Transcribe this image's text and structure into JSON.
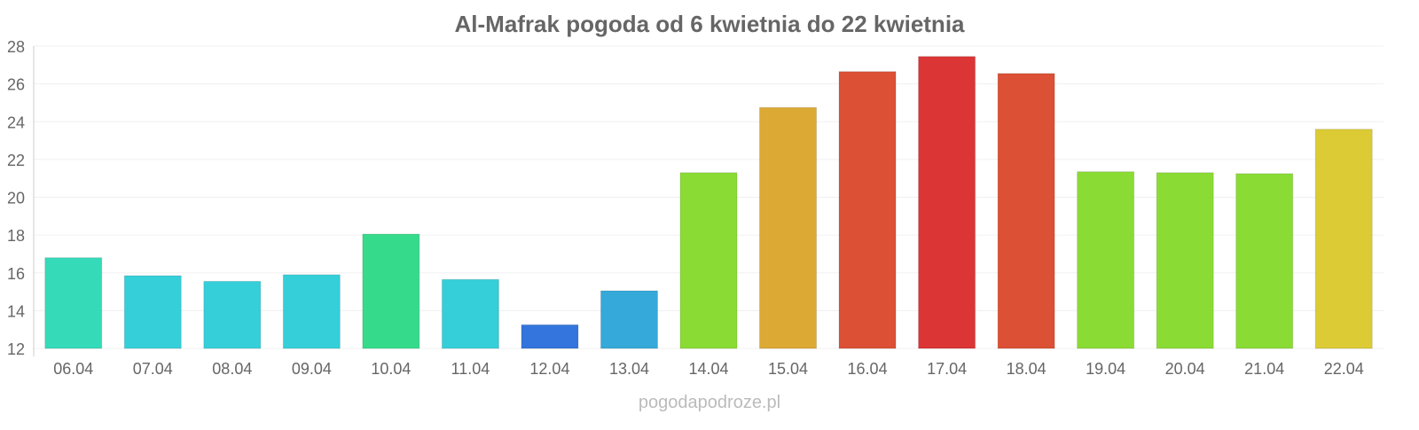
{
  "chart_data": {
    "type": "bar",
    "title": "Al-Mafrak pogoda od 6 kwietnia do 22 kwietnia",
    "xlabel": "",
    "ylabel": "",
    "ylim": [
      12,
      28
    ],
    "yticks": [
      "12",
      "14",
      "16",
      "18",
      "20",
      "22",
      "24",
      "26",
      "28"
    ],
    "grid": true,
    "categories": [
      "06.04",
      "07.04",
      "08.04",
      "09.04",
      "10.04",
      "11.04",
      "12.04",
      "13.04",
      "14.04",
      "15.04",
      "16.04",
      "17.04",
      "18.04",
      "19.04",
      "20.04",
      "21.04",
      "22.04"
    ],
    "values": [
      16.8,
      15.85,
      15.55,
      15.9,
      18.05,
      15.65,
      13.25,
      15.05,
      21.3,
      24.75,
      26.65,
      27.45,
      26.55,
      21.35,
      21.3,
      21.25,
      23.6
    ],
    "colors": [
      "#35dbb9",
      "#35cfd9",
      "#35cfd9",
      "#35cfd9",
      "#35db8a",
      "#35cfd9",
      "#3375dc",
      "#35a9d9",
      "#8adc35",
      "#dca935",
      "#dc5035",
      "#dc3535",
      "#dc5035",
      "#8adc35",
      "#8adc35",
      "#8adc35",
      "#dccb35"
    ],
    "watermark": "pogodapodroze.pl"
  }
}
